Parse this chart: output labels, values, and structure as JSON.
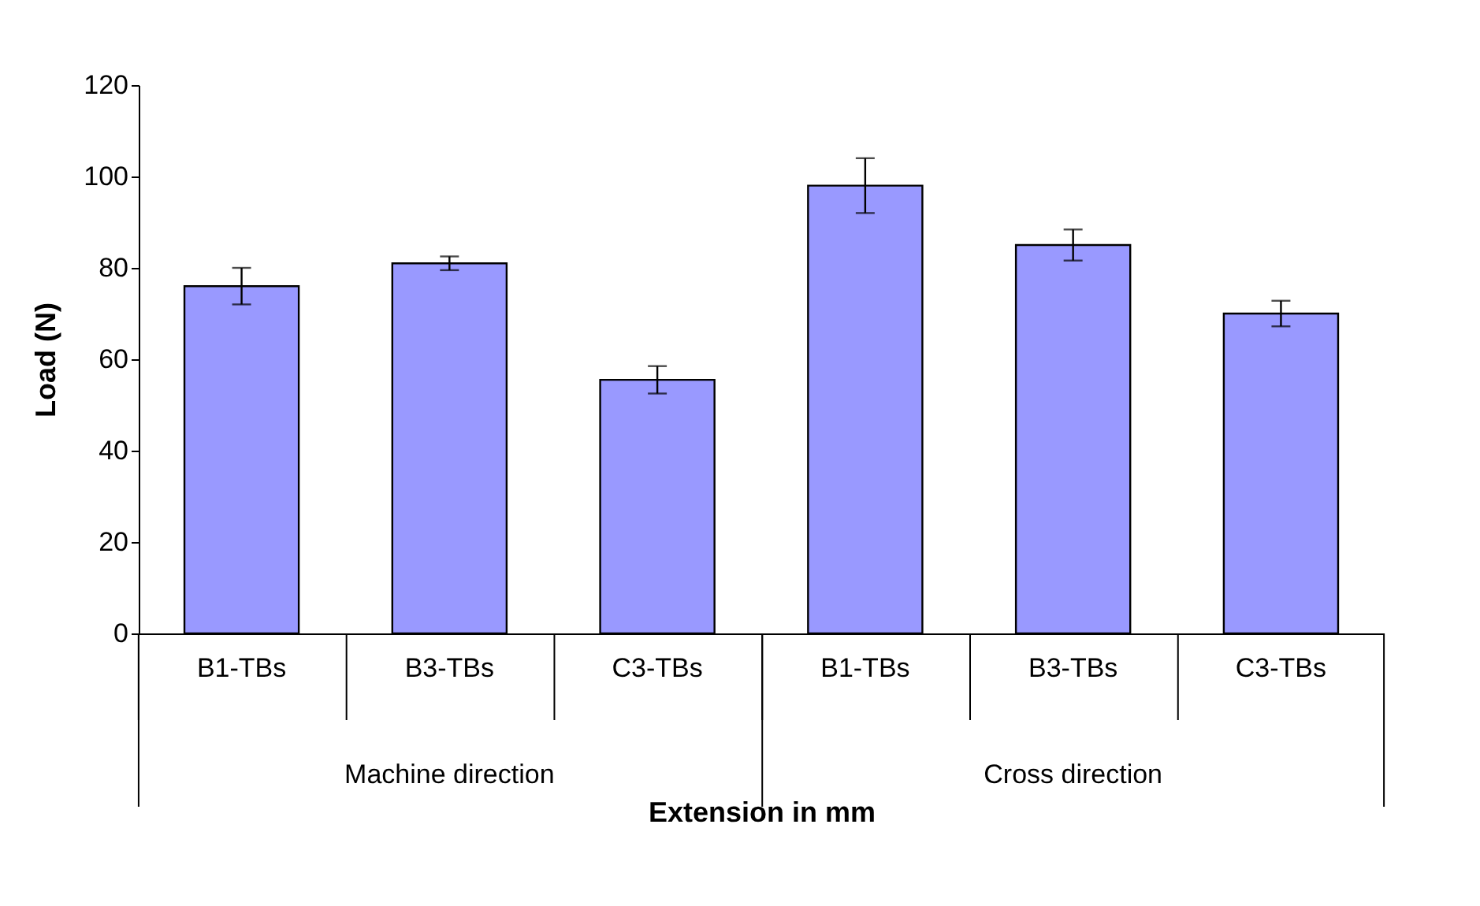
{
  "chart_data": {
    "type": "bar",
    "xlabel": "Extension in mm",
    "ylabel": "Load (N)",
    "categories": [
      "B1-TBs",
      "B3-TBs",
      "C3-TBs",
      "B1-TBs",
      "B3-TBs",
      "C3-TBs"
    ],
    "values": [
      76,
      81,
      55.5,
      98,
      85,
      70
    ],
    "errors": [
      4,
      1.5,
      3,
      6,
      3.4,
      2.8
    ],
    "color": "#9999ff",
    "ylim": [
      0,
      120
    ],
    "yticks": [
      0,
      20,
      40,
      60,
      80,
      100,
      120
    ],
    "grid": false,
    "annotations": [
      "Machine direction",
      "Cross direction"
    ]
  }
}
